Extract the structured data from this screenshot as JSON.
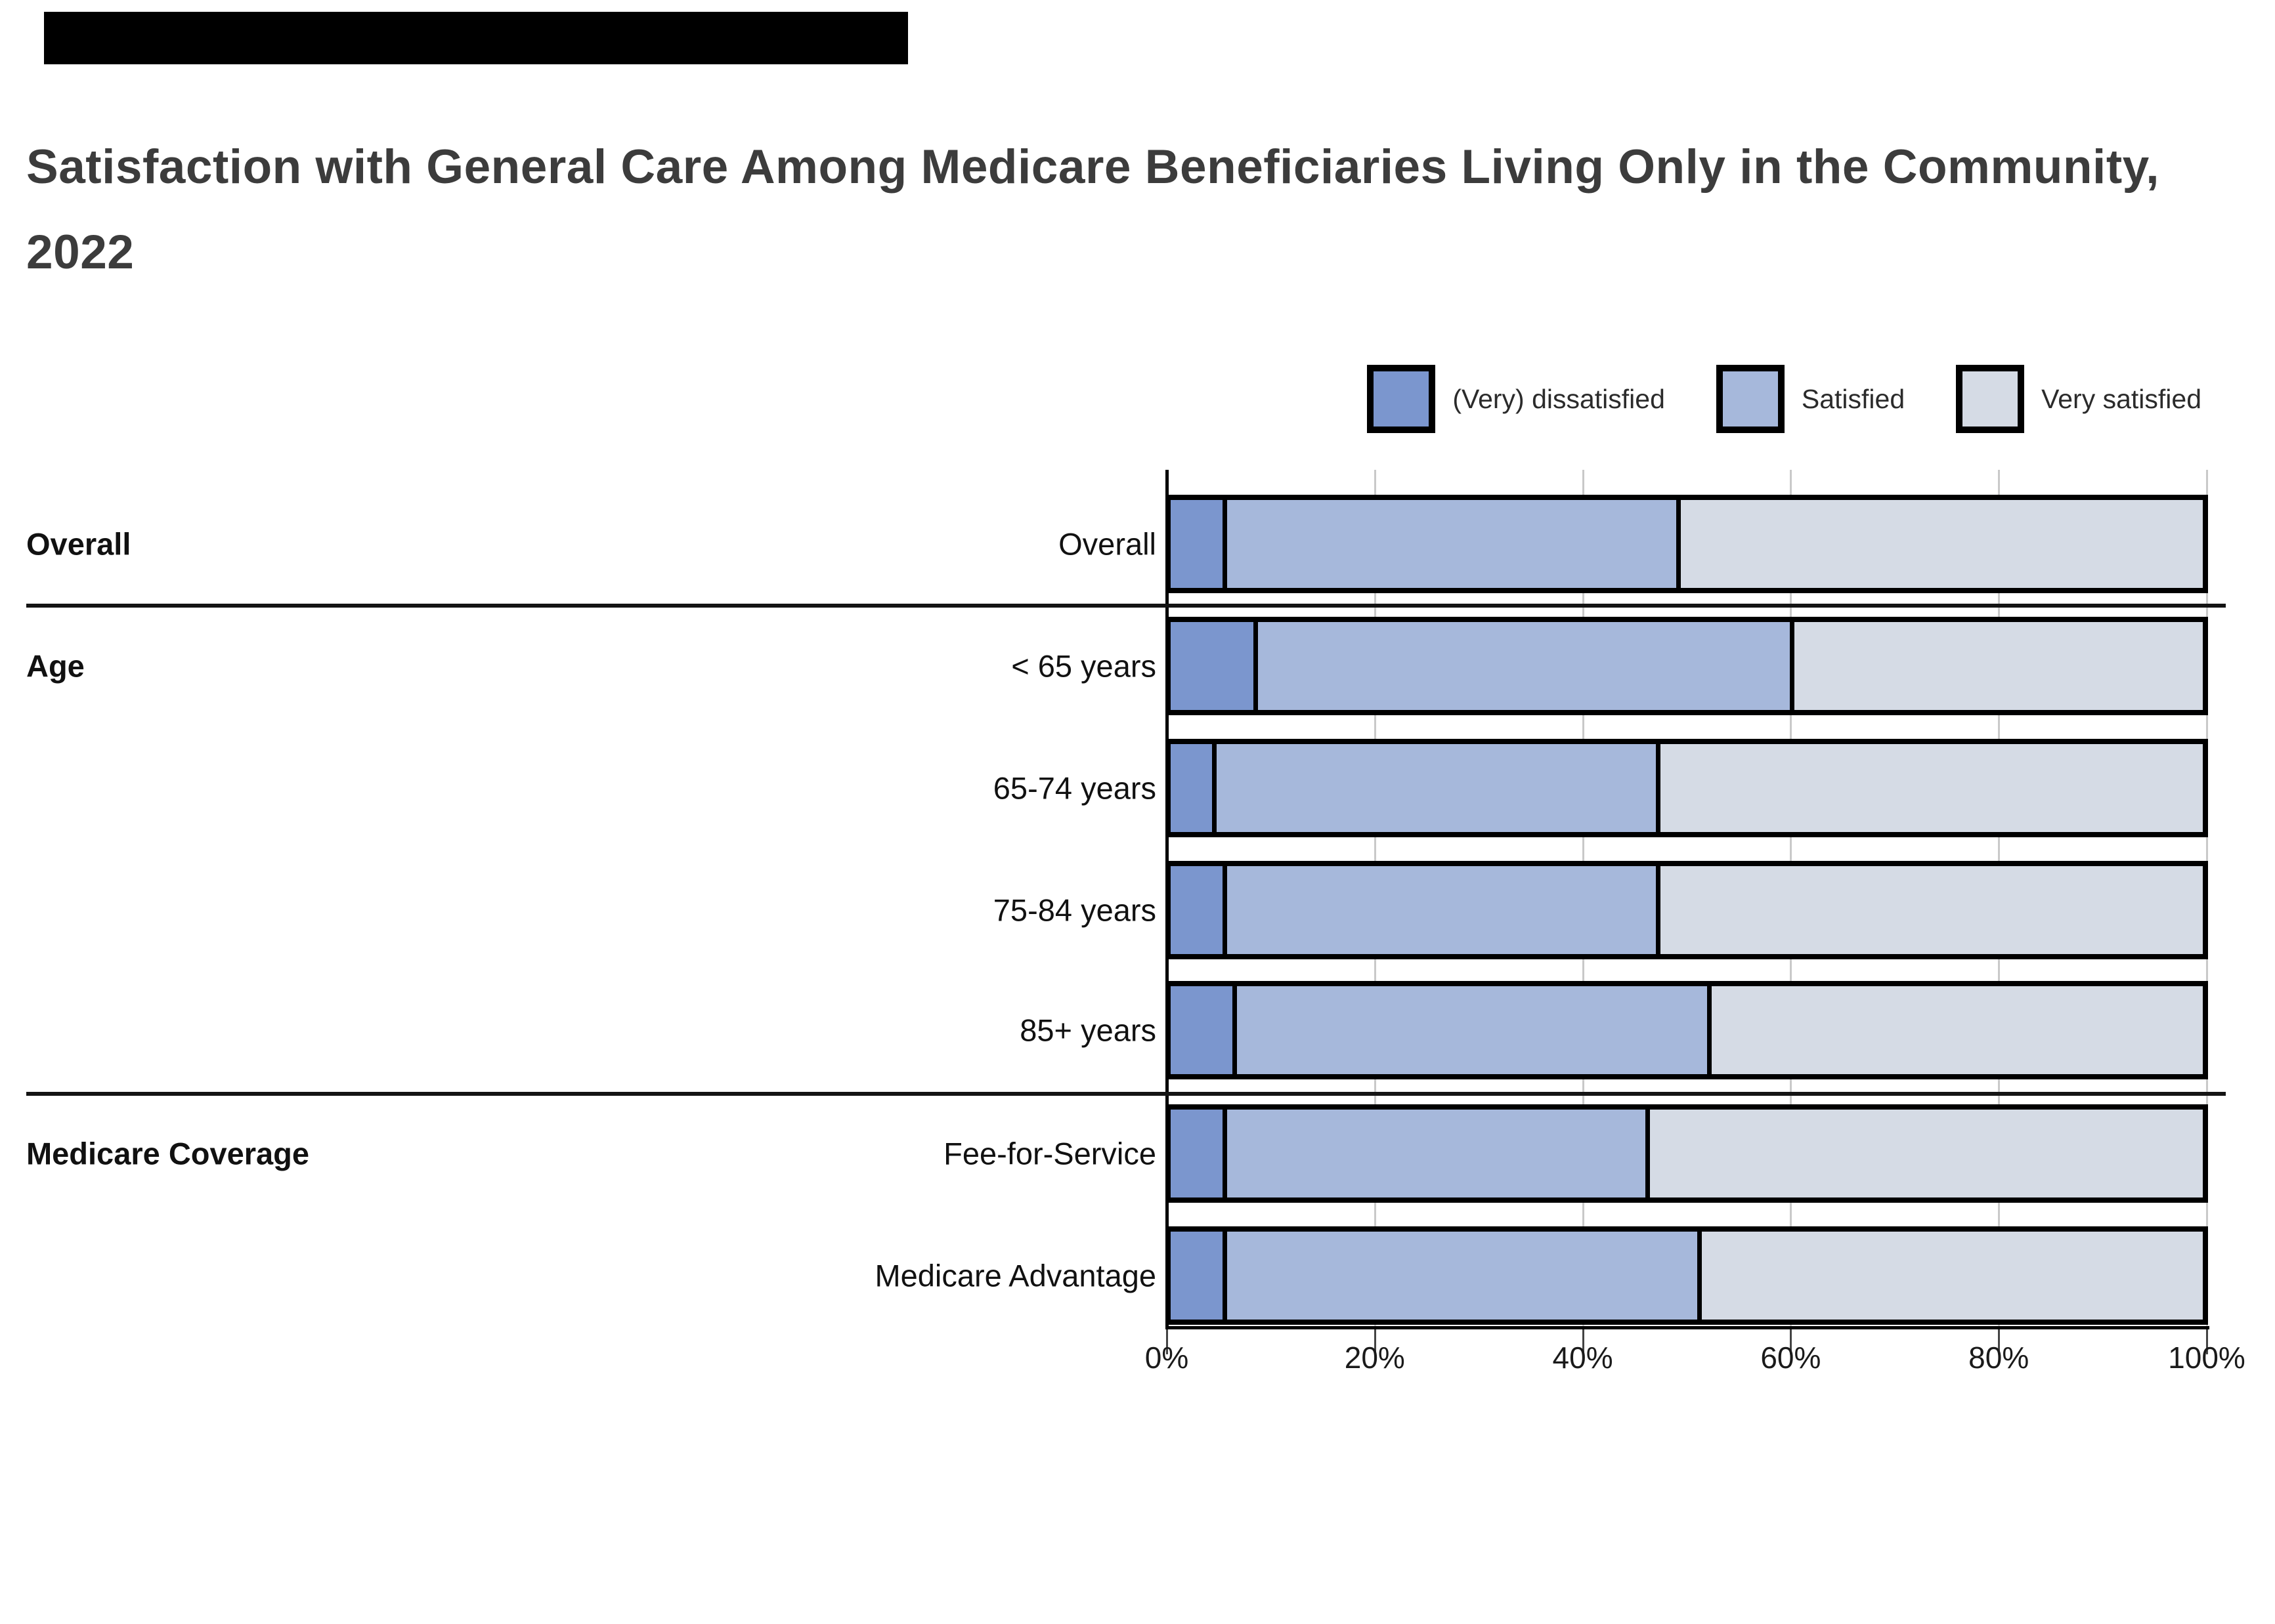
{
  "title": "Satisfaction with General Care Among Medicare Beneficiaries Living Only in the Community, 2022",
  "ui": {
    "banner_color": "#000000",
    "background_color": "#ffffff",
    "title_color": "#3c3c3c"
  },
  "legend": [
    {
      "label": "(Very) dissatisfied",
      "color": "#7b96ce"
    },
    {
      "label": "Satisfied",
      "color": "#a6b8db"
    },
    {
      "label": "Very satisfied",
      "color": "#d5dbe5"
    }
  ],
  "chart_data": {
    "type": "bar",
    "stacked": true,
    "orientation": "horizontal",
    "title": "Satisfaction with General Care Among Medicare Beneficiaries Living Only in the Community, 2022",
    "categories": [
      "Overall",
      "< 65 years",
      "65-74 years",
      "75-84 years",
      "85+ years",
      "Fee-for-Service",
      "Medicare Advantage"
    ],
    "groups": [
      {
        "label": "Overall",
        "row_indexes": [
          0
        ]
      },
      {
        "label": "Age",
        "row_indexes": [
          1,
          2,
          3,
          4
        ]
      },
      {
        "label": "Medicare Coverage",
        "row_indexes": [
          5,
          6
        ]
      }
    ],
    "series": [
      {
        "name": "(Very) dissatisfied",
        "color": "#7b96ce",
        "values": [
          5,
          8,
          4,
          5,
          6,
          5,
          5
        ]
      },
      {
        "name": "Satisfied",
        "color": "#a6b8db",
        "values": [
          44,
          52,
          43,
          42,
          46,
          41,
          46
        ]
      },
      {
        "name": "Very satisfied",
        "color": "#d5dbe5",
        "values": [
          51,
          40,
          53,
          53,
          48,
          54,
          49
        ]
      }
    ],
    "xlabel": "",
    "ylabel": "",
    "xlim": [
      0,
      100
    ],
    "x_ticks": [
      0,
      20,
      40,
      60,
      80,
      100
    ],
    "x_tick_labels": [
      "0%",
      "20%",
      "40%",
      "60%",
      "80%",
      "100%"
    ],
    "grid": "vertical",
    "legend_position": "top-right"
  }
}
